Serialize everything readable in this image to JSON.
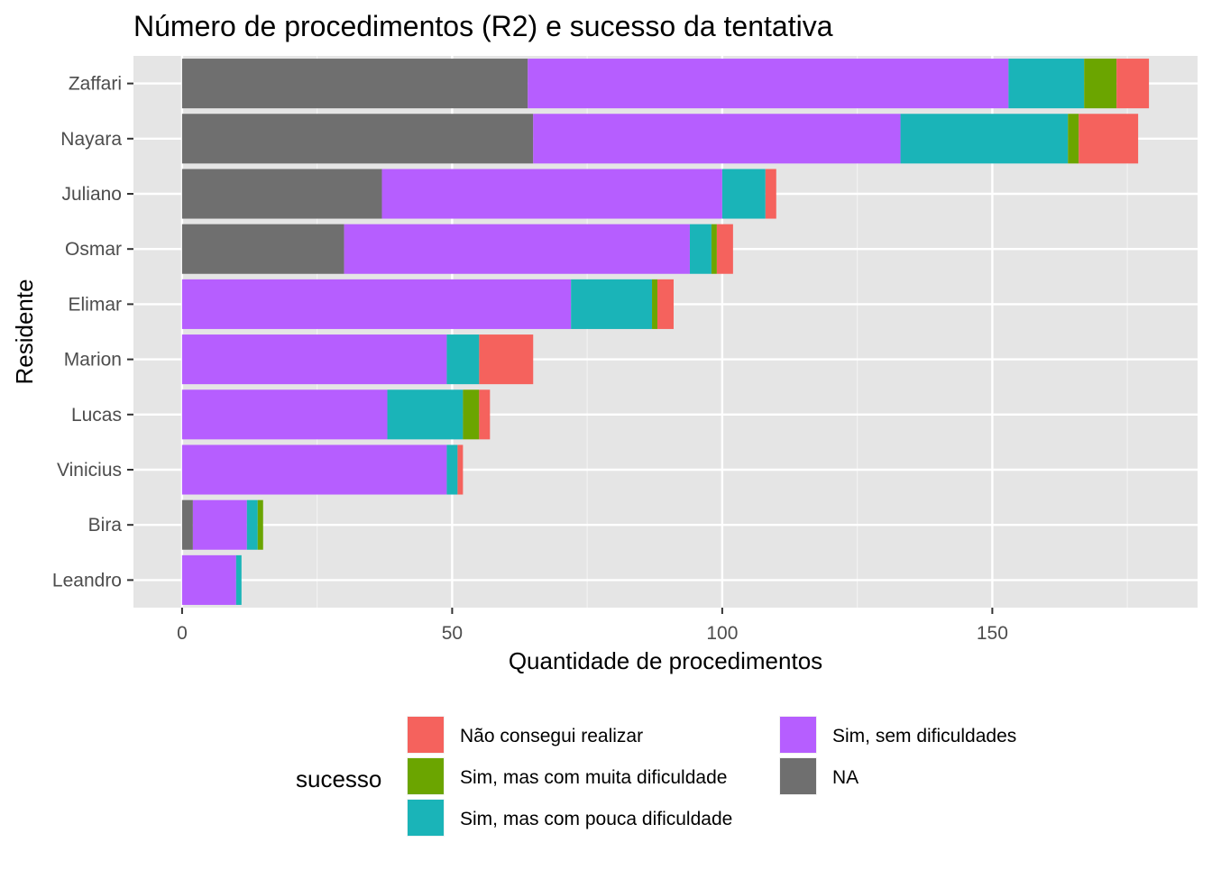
{
  "chart_data": {
    "type": "bar",
    "orientation": "horizontal",
    "stacked": true,
    "title": "Número de procedimentos (R2) e sucesso da tentativa",
    "xlabel": "Quantidade de procedimentos",
    "ylabel": "Residente",
    "xlim": [
      -9,
      188
    ],
    "xticks": [
      0,
      50,
      100,
      150
    ],
    "xtick_labels": [
      "0",
      "50",
      "100",
      "150"
    ],
    "grid": true,
    "legend_position": "bottom",
    "legend_title": "sucesso",
    "categories": [
      "Zaffari",
      "Nayara",
      "Juliano",
      "Osmar",
      "Elimar",
      "Marion",
      "Lucas",
      "Vinicius",
      "Bira",
      "Leandro"
    ],
    "series": [
      {
        "name": "NA",
        "color": "#6f6f6f",
        "values": [
          64,
          65,
          37,
          30,
          0,
          0,
          0,
          0,
          2,
          0
        ]
      },
      {
        "name": "Sim, sem dificuldades",
        "color": "#b65eff",
        "values": [
          89,
          68,
          63,
          64,
          72,
          49,
          38,
          49,
          10,
          10
        ]
      },
      {
        "name": "Sim, mas com pouca dificuldade",
        "color": "#1ab4b8",
        "values": [
          14,
          31,
          8,
          4,
          15,
          6,
          14,
          2,
          2,
          1
        ]
      },
      {
        "name": "Sim, mas com muita dificuldade",
        "color": "#6ba500",
        "values": [
          6,
          2,
          0,
          1,
          1,
          0,
          3,
          0,
          1,
          0
        ]
      },
      {
        "name": "Não consegui realizar",
        "color": "#f5625d",
        "values": [
          6,
          11,
          2,
          3,
          3,
          10,
          2,
          1,
          0,
          0
        ]
      }
    ],
    "legend_entries": [
      {
        "label": "Não consegui realizar",
        "color": "#f5625d"
      },
      {
        "label": "Sim, mas com muita dificuldade",
        "color": "#6ba500"
      },
      {
        "label": "Sim, mas com pouca dificuldade",
        "color": "#1ab4b8"
      },
      {
        "label": "Sim, sem dificuldades",
        "color": "#b65eff"
      },
      {
        "label": "NA",
        "color": "#6f6f6f"
      }
    ]
  }
}
